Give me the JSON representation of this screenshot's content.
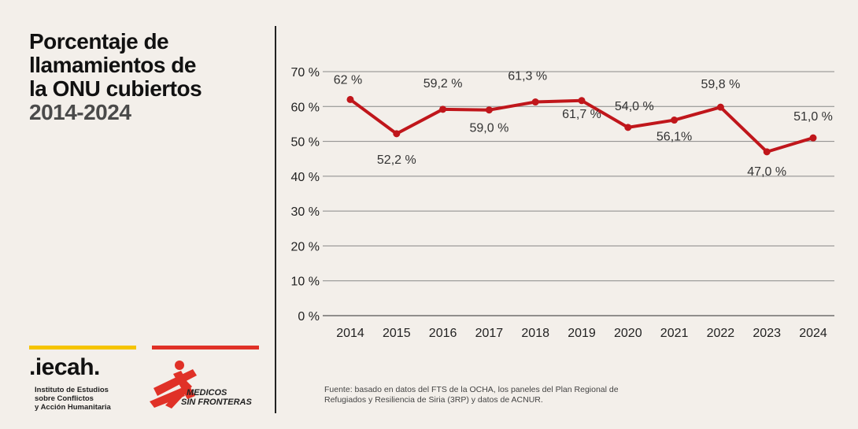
{
  "title": {
    "line1": "Porcentaje de",
    "line2": "llamamientos de",
    "line3": "la ONU cubiertos",
    "years": "2014-2024"
  },
  "logos": {
    "iecah": {
      "name": ".iecah.",
      "subtitle": [
        "Instituto de Estudios",
        "sobre Conflictos",
        "y Acción Humanitaria"
      ],
      "color": "#f5c400"
    },
    "msf": {
      "name": [
        "MEDICOS",
        "SIN FRONTERAS"
      ],
      "color": "#e03127"
    }
  },
  "source": "Fuente:  basado en datos del FTS de la OCHA, los paneles del Plan Regional de Refugiados y Resiliencia de Siria (3RP) y datos de ACNUR.",
  "chart_data": {
    "type": "line",
    "x": [
      "2014",
      "2015",
      "2016",
      "2017",
      "2018",
      "2019",
      "2020",
      "2021",
      "2022",
      "2023",
      "2024"
    ],
    "series": [
      {
        "values": [
          62,
          52.2,
          59.2,
          59.0,
          61.3,
          61.7,
          54.0,
          56.1,
          59.8,
          47.0,
          51.0
        ],
        "color": "#c0161b"
      }
    ],
    "data_labels": [
      "62 %",
      "52,2 %",
      "59,2 %",
      "59,0 %",
      "61,3  %",
      "61,7 %",
      "54,0 %",
      "56,1%",
      "59,8 %",
      "47,0 %",
      "51,0 %"
    ],
    "yticks": [
      "0 %",
      "10 %",
      "20 %",
      "30 %",
      "40 %",
      "50 %",
      "60 %",
      "70 %"
    ],
    "ylim": [
      0,
      70
    ],
    "grid": true
  }
}
